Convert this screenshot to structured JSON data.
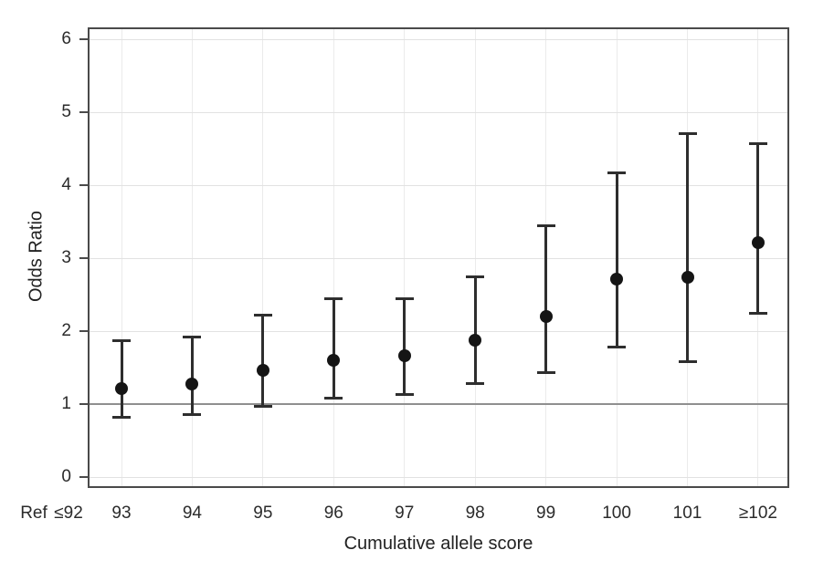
{
  "chart_data": {
    "type": "scatter",
    "subtype": "forest-plot-point-estimates-with-95ci-errorbars",
    "title": "",
    "xlabel": "Cumulative allele score",
    "ylabel": "Odds Ratio",
    "x_axis_prefix_labels": [
      "Ref",
      "≤92"
    ],
    "categories": [
      "93",
      "94",
      "95",
      "96",
      "97",
      "98",
      "99",
      "100",
      "101",
      "≥102"
    ],
    "values": [
      1.21,
      1.28,
      1.46,
      1.6,
      1.66,
      1.88,
      2.2,
      2.71,
      2.74,
      3.21
    ],
    "ci_low": [
      0.81,
      0.85,
      0.96,
      1.08,
      1.13,
      1.27,
      1.42,
      1.78,
      1.57,
      2.24
    ],
    "ci_high": [
      1.88,
      1.92,
      2.23,
      2.45,
      2.45,
      2.75,
      3.45,
      4.18,
      4.71,
      4.58
    ],
    "reference_line_y": 1,
    "ylim": [
      0,
      6
    ],
    "yticks": [
      0,
      1,
      2,
      3,
      4,
      5,
      6
    ],
    "grid": true,
    "legend_position": "none",
    "colors": {
      "point": "#151515",
      "errorbar": "#2e2e2e",
      "axis_border": "#4a4a4a",
      "grid_horizontal": "#e2e2e2",
      "grid_vertical": "#ebebeb",
      "reference_line": "#8f8f8f",
      "text": "#2b2b2b",
      "background": "#ffffff"
    }
  }
}
